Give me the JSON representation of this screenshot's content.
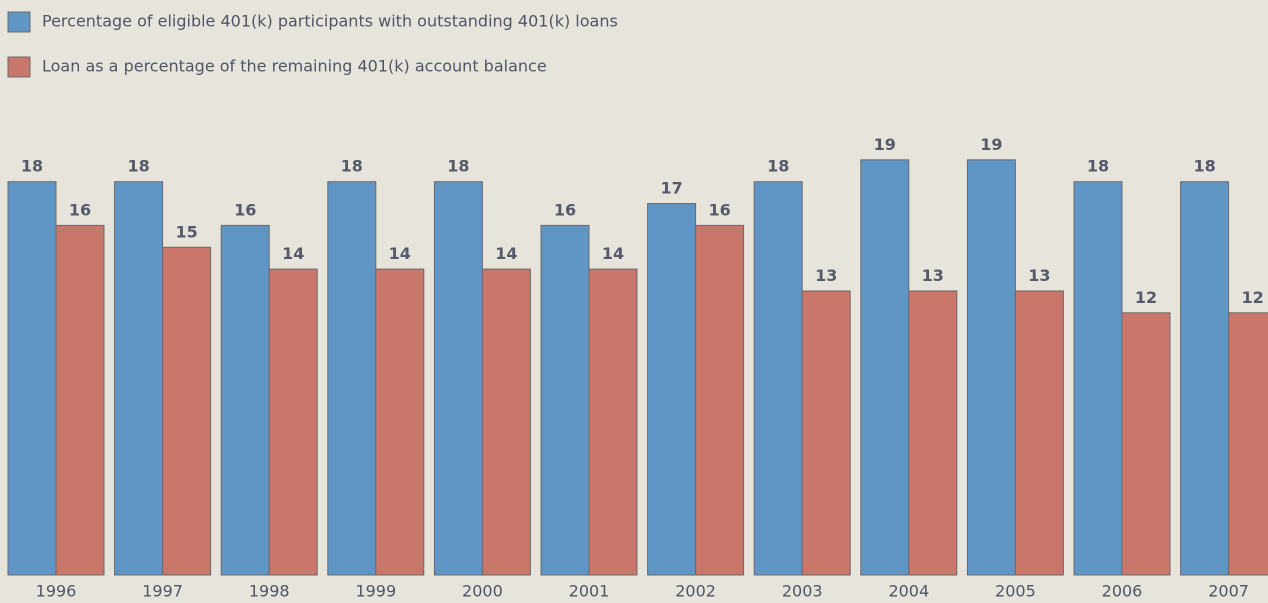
{
  "chart_data": {
    "type": "bar",
    "categories": [
      "1996",
      "1997",
      "1998",
      "1999",
      "2000",
      "2001",
      "2002",
      "2003",
      "2004",
      "2005",
      "2006",
      "2007"
    ],
    "series": [
      {
        "name": "Percentage of eligible 401(k) participants with outstanding 401(k) loans",
        "color": "#6096c6",
        "values": [
          18,
          18,
          16,
          18,
          18,
          16,
          17,
          18,
          19,
          19,
          18,
          18
        ]
      },
      {
        "name": "Loan as a percentage of the remaining 401(k) account balance",
        "color": "#c9766b",
        "values": [
          16,
          15,
          14,
          14,
          14,
          14,
          16,
          13,
          13,
          13,
          12,
          12
        ]
      }
    ],
    "legend": "top-left"
  }
}
